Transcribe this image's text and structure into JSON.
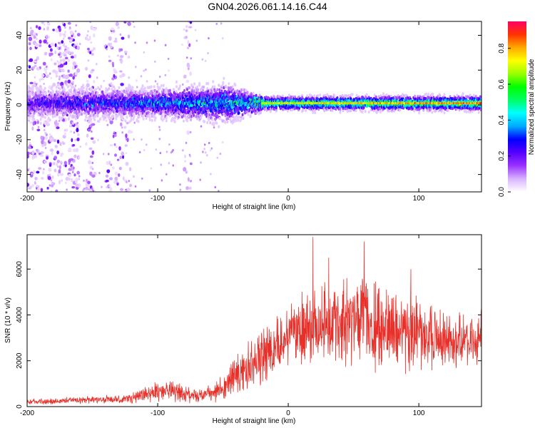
{
  "title": "GN04.2026.061.14.16.C44",
  "chart_data": [
    {
      "type": "heatmap",
      "xlabel": "Height of straight line (km)",
      "ylabel": "Frequency (Hz)",
      "xlim": [
        -200,
        148
      ],
      "ylim": [
        -50,
        48
      ],
      "xticks": [
        -200,
        -100,
        0,
        100
      ],
      "yticks": [
        40,
        20,
        0,
        -20,
        -40
      ],
      "colorbar": {
        "label": "Normalized spectral amplitude",
        "range": [
          0,
          0.95
        ],
        "ticks": [
          0.0,
          0.2,
          0.4,
          0.6,
          0.8
        ],
        "colors": [
          "#ffffff",
          "#d9b3ff",
          "#9933ff",
          "#5500ff",
          "#0000ff",
          "#00aaff",
          "#00ffff",
          "#00ff66",
          "#00ff00",
          "#99ff00",
          "#ffff00",
          "#ffaa00",
          "#ff3300",
          "#ff0066"
        ]
      },
      "band": {
        "center_frequency_hz": 1,
        "width_hz": [
          {
            "x": -200,
            "value": 12
          },
          {
            "x": -100,
            "value": 12
          },
          {
            "x": -45,
            "value": 16
          },
          {
            "x": -20,
            "value": 6
          },
          {
            "x": 148,
            "value": 6
          }
        ],
        "peak_amplitude": [
          {
            "x": -200,
            "value": 0.3
          },
          {
            "x": -100,
            "value": 0.45
          },
          {
            "x": -30,
            "value": 0.55
          },
          {
            "x": -20,
            "value": 0.75
          },
          {
            "x": 148,
            "value": 0.9
          }
        ]
      },
      "noise_regions": [
        {
          "x_range": [
            -200,
            -160
          ],
          "density": "high"
        },
        {
          "x_range": [
            -155,
            -148
          ],
          "density": "high"
        },
        {
          "x_range": [
            -140,
            -120
          ],
          "density": "medium"
        },
        {
          "x_range": [
            -80,
            -74
          ],
          "density": "medium"
        }
      ]
    },
    {
      "type": "line",
      "xlabel": "Height of straight line (km)",
      "ylabel": "SNR (10 * v/v)",
      "xlim": [
        -200,
        148
      ],
      "ylim": [
        0,
        7500
      ],
      "xticks": [
        -200,
        -100,
        0,
        100
      ],
      "yticks": [
        0,
        2000,
        4000,
        6000
      ],
      "color": "#e8302a",
      "trend": [
        {
          "x": -200,
          "mean": 200,
          "spread": 150
        },
        {
          "x": -150,
          "mean": 300,
          "spread": 200
        },
        {
          "x": -120,
          "mean": 350,
          "spread": 250
        },
        {
          "x": -110,
          "mean": 550,
          "spread": 400
        },
        {
          "x": -90,
          "mean": 700,
          "spread": 600
        },
        {
          "x": -70,
          "mean": 450,
          "spread": 300
        },
        {
          "x": -55,
          "mean": 650,
          "spread": 500
        },
        {
          "x": -40,
          "mean": 1300,
          "spread": 1000
        },
        {
          "x": -20,
          "mean": 2200,
          "spread": 1700
        },
        {
          "x": 0,
          "mean": 3000,
          "spread": 1700
        },
        {
          "x": 20,
          "mean": 3700,
          "spread": 2200
        },
        {
          "x": 50,
          "mean": 3700,
          "spread": 2300
        },
        {
          "x": 90,
          "mean": 3300,
          "spread": 2000
        },
        {
          "x": 120,
          "mean": 3000,
          "spread": 1500
        },
        {
          "x": 148,
          "mean": 3000,
          "spread": 1300
        }
      ],
      "peaks": [
        {
          "x": 19,
          "y": 7400
        },
        {
          "x": 31,
          "y": 6500
        },
        {
          "x": 58,
          "y": 7200
        },
        {
          "x": 94,
          "y": 6000
        }
      ]
    }
  ]
}
